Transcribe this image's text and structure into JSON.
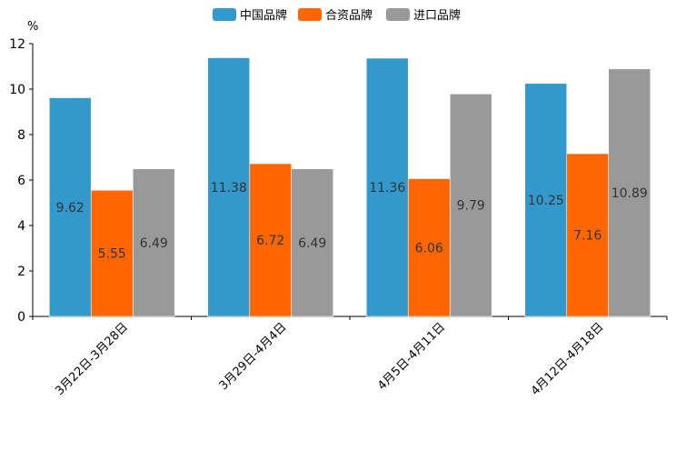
{
  "chart_data": {
    "type": "bar",
    "unit": "%",
    "categories": [
      "3月22日-3月28日",
      "3月29日-4月4日",
      "4月5日-4月11日",
      "4月12日-4月18日"
    ],
    "series": [
      {
        "name": "中国品牌",
        "color": "#3399cc",
        "values": [
          9.62,
          11.38,
          11.36,
          10.25
        ]
      },
      {
        "name": "合资品牌",
        "color": "#ff6600",
        "values": [
          5.55,
          6.72,
          6.06,
          7.16
        ]
      },
      {
        "name": "进口品牌",
        "color": "#999999",
        "values": [
          6.49,
          6.49,
          9.79,
          10.89
        ]
      }
    ],
    "ylim": [
      0,
      12
    ],
    "yticks": [
      0,
      2,
      4,
      6,
      8,
      10,
      12
    ],
    "legend_position": "top-center",
    "grid": false
  }
}
